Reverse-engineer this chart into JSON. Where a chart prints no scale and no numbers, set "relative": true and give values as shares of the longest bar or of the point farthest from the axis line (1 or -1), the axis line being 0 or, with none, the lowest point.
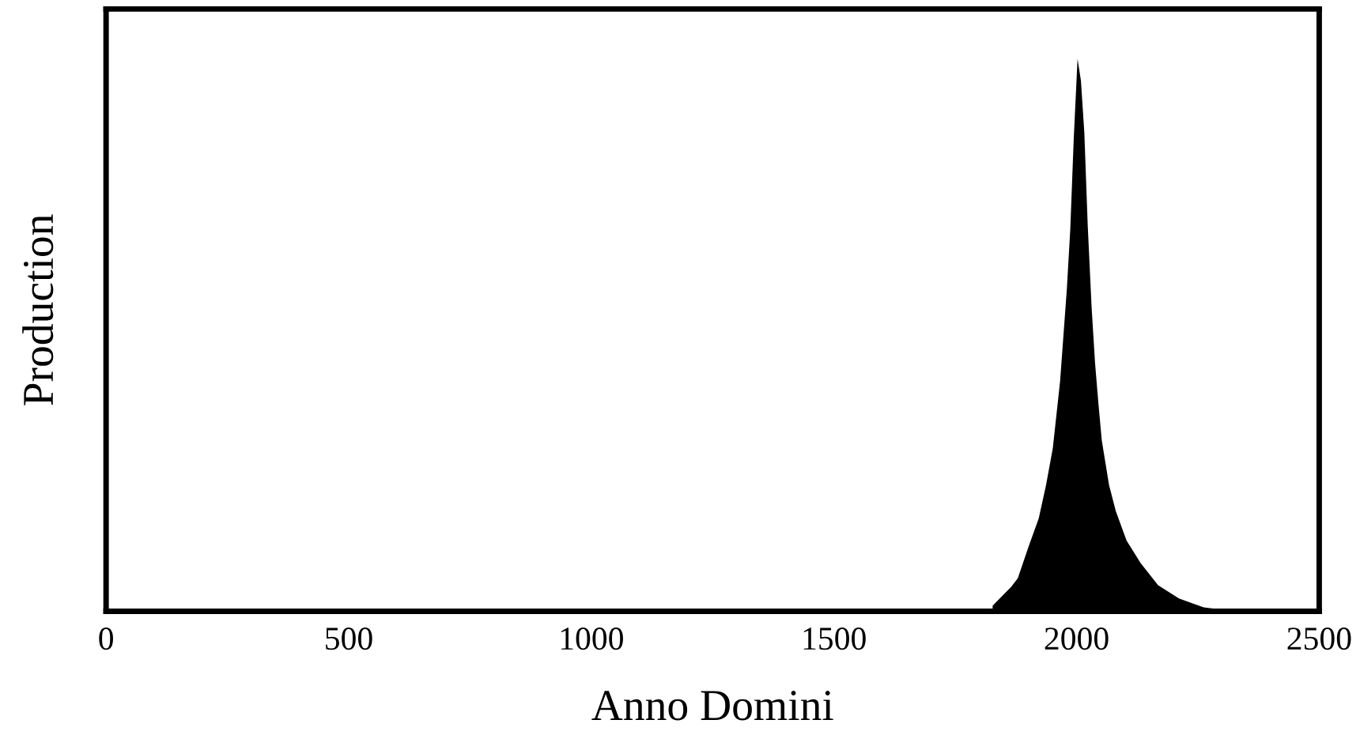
{
  "chart_data": {
    "type": "area",
    "relative": true,
    "xlabel": "Anno Domini",
    "ylabel": "Production",
    "xlim": [
      0,
      2500
    ],
    "xticks": [
      0,
      500,
      1000,
      1500,
      2000,
      2500
    ],
    "grid": false,
    "legend": false,
    "series": [
      {
        "color": "#000000",
        "x": [
          1827,
          1865,
          1879,
          1901,
          1922,
          1937,
          1951,
          1966,
          1980,
          1987,
          1994,
          2002,
          2009,
          2016,
          2023,
          2031,
          2038,
          2045,
          2052,
          2067,
          2081,
          2103,
          2132,
          2168,
          2211,
          2262,
          2319
        ],
        "values": [
          0.01,
          0.044,
          0.06,
          0.117,
          0.168,
          0.228,
          0.295,
          0.416,
          0.584,
          0.691,
          0.852,
          1.0,
          0.96,
          0.866,
          0.698,
          0.55,
          0.45,
          0.376,
          0.309,
          0.228,
          0.181,
          0.128,
          0.087,
          0.047,
          0.023,
          0.007,
          0.001
        ]
      }
    ]
  }
}
